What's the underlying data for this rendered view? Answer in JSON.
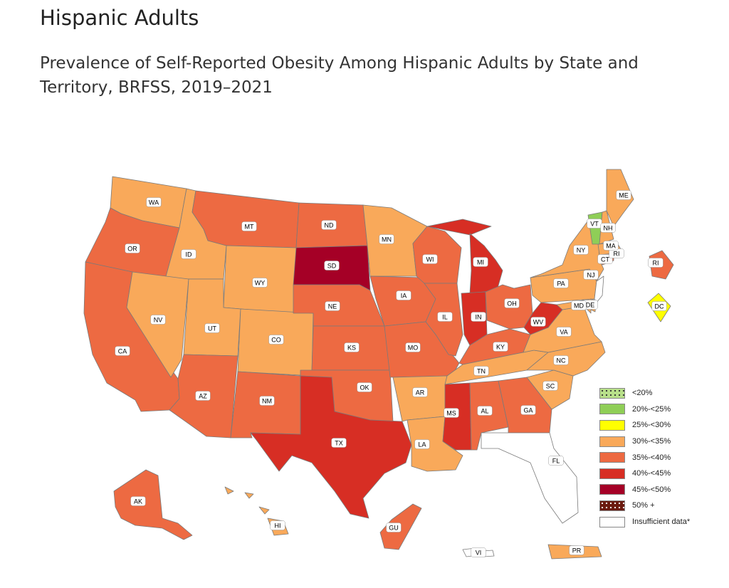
{
  "page_heading": "Hispanic Adults",
  "map_title": "Prevalence of Self-Reported Obesity Among Hispanic Adults by State and Territory, BRFSS, 2019–2021",
  "categories": [
    {
      "label": "<20%",
      "color": "#b8e08a",
      "pattern": "dots-dark"
    },
    {
      "label": "20%-<25%",
      "color": "#8fce57"
    },
    {
      "label": "25%-<30%",
      "color": "#ffff00"
    },
    {
      "label": "30%-<35%",
      "color": "#f9a95a"
    },
    {
      "label": "35%-<40%",
      "color": "#ed6a42"
    },
    {
      "label": "40%-<45%",
      "color": "#d72e24"
    },
    {
      "label": "45%-<50%",
      "color": "#a50026"
    },
    {
      "label": "50% +",
      "color": "#6b1a0f",
      "pattern": "dots-light"
    },
    {
      "label": "Insufficient data*",
      "color": "#ffffff"
    }
  ],
  "states": [
    {
      "abbr": "WA",
      "category": "30%-<35%"
    },
    {
      "abbr": "OR",
      "category": "35%-<40%"
    },
    {
      "abbr": "CA",
      "category": "35%-<40%"
    },
    {
      "abbr": "ID",
      "category": "30%-<35%"
    },
    {
      "abbr": "NV",
      "category": "30%-<35%"
    },
    {
      "abbr": "MT",
      "category": "35%-<40%"
    },
    {
      "abbr": "WY",
      "category": "30%-<35%"
    },
    {
      "abbr": "UT",
      "category": "30%-<35%"
    },
    {
      "abbr": "AZ",
      "category": "35%-<40%"
    },
    {
      "abbr": "CO",
      "category": "30%-<35%"
    },
    {
      "abbr": "NM",
      "category": "35%-<40%"
    },
    {
      "abbr": "ND",
      "category": "35%-<40%"
    },
    {
      "abbr": "SD",
      "category": "45%-<50%"
    },
    {
      "abbr": "NE",
      "category": "35%-<40%"
    },
    {
      "abbr": "KS",
      "category": "35%-<40%"
    },
    {
      "abbr": "OK",
      "category": "35%-<40%"
    },
    {
      "abbr": "TX",
      "category": "40%-<45%"
    },
    {
      "abbr": "MN",
      "category": "30%-<35%"
    },
    {
      "abbr": "IA",
      "category": "35%-<40%"
    },
    {
      "abbr": "MO",
      "category": "35%-<40%"
    },
    {
      "abbr": "AR",
      "category": "30%-<35%"
    },
    {
      "abbr": "LA",
      "category": "30%-<35%"
    },
    {
      "abbr": "WI",
      "category": "35%-<40%"
    },
    {
      "abbr": "IL",
      "category": "35%-<40%"
    },
    {
      "abbr": "MI",
      "category": "40%-<45%"
    },
    {
      "abbr": "IN",
      "category": "40%-<45%"
    },
    {
      "abbr": "OH",
      "category": "35%-<40%"
    },
    {
      "abbr": "KY",
      "category": "35%-<40%"
    },
    {
      "abbr": "TN",
      "category": "30%-<35%"
    },
    {
      "abbr": "MS",
      "category": "40%-<45%"
    },
    {
      "abbr": "AL",
      "category": "35%-<40%"
    },
    {
      "abbr": "GA",
      "category": "35%-<40%"
    },
    {
      "abbr": "FL",
      "category": "Insufficient data*"
    },
    {
      "abbr": "SC",
      "category": "30%-<35%"
    },
    {
      "abbr": "NC",
      "category": "30%-<35%"
    },
    {
      "abbr": "VA",
      "category": "30%-<35%"
    },
    {
      "abbr": "WV",
      "category": "40%-<45%"
    },
    {
      "abbr": "PA",
      "category": "30%-<35%"
    },
    {
      "abbr": "NY",
      "category": "30%-<35%"
    },
    {
      "abbr": "NJ",
      "category": "Insufficient data*"
    },
    {
      "abbr": "DE",
      "category": "30%-<35%"
    },
    {
      "abbr": "MD",
      "category": "30%-<35%"
    },
    {
      "abbr": "DC",
      "category": "25%-<30%"
    },
    {
      "abbr": "CT",
      "category": "35%-<40%"
    },
    {
      "abbr": "RI",
      "category": "35%-<40%"
    },
    {
      "abbr": "MA",
      "category": "30%-<35%"
    },
    {
      "abbr": "VT",
      "category": "20%-<25%"
    },
    {
      "abbr": "NH",
      "category": "30%-<35%"
    },
    {
      "abbr": "ME",
      "category": "30%-<35%"
    },
    {
      "abbr": "AK",
      "category": "35%-<40%"
    },
    {
      "abbr": "HI",
      "category": "30%-<35%"
    },
    {
      "abbr": "GU",
      "category": "35%-<40%"
    },
    {
      "abbr": "PR",
      "category": "30%-<35%"
    },
    {
      "abbr": "VI",
      "category": "Insufficient data*"
    }
  ]
}
